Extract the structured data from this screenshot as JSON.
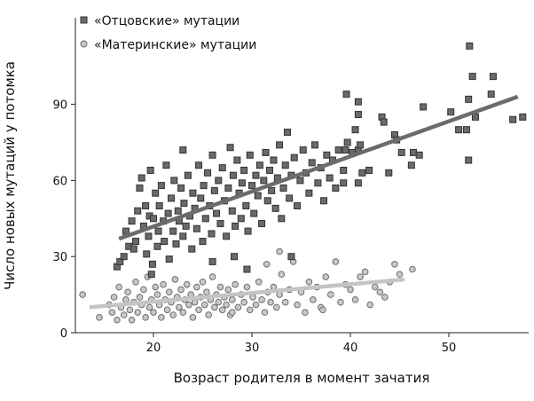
{
  "chart_data": {
    "type": "scatter",
    "title": "",
    "xlabel": "Возраст родителя в момент зачатия",
    "ylabel": "Число новых мутаций у потомка",
    "xlim": [
      12,
      58.5
    ],
    "ylim": [
      0,
      124
    ],
    "xticks": [
      "20",
      "30",
      "40",
      "50"
    ],
    "xtick_values": [
      20,
      30,
      40,
      50
    ],
    "yticks": [
      "0",
      "30",
      "60",
      "90"
    ],
    "ytick_values": [
      0,
      30,
      60,
      90
    ],
    "grid": false,
    "legend_position": "top-left",
    "series": [
      {
        "name": "«Отцовские» мутации",
        "marker": "square",
        "color": "#6a6a6a",
        "trend": {
          "x": [
            16.5,
            57
          ],
          "y": [
            37,
            93
          ],
          "color": "#6b6b6b"
        },
        "points": [
          [
            16.3,
            26
          ],
          [
            16.6,
            28
          ],
          [
            17,
            30
          ],
          [
            17.2,
            40
          ],
          [
            17.5,
            34
          ],
          [
            17.8,
            44
          ],
          [
            18,
            33
          ],
          [
            18.2,
            36
          ],
          [
            18.4,
            48
          ],
          [
            18.6,
            57
          ],
          [
            18.8,
            61
          ],
          [
            19,
            42
          ],
          [
            19.2,
            50
          ],
          [
            19.3,
            31
          ],
          [
            19.5,
            38
          ],
          [
            19.6,
            46
          ],
          [
            19.7,
            64
          ],
          [
            19.8,
            23
          ],
          [
            19.9,
            27
          ],
          [
            20,
            45
          ],
          [
            20.2,
            55
          ],
          [
            20.4,
            34
          ],
          [
            20.5,
            40
          ],
          [
            20.6,
            50
          ],
          [
            20.8,
            58
          ],
          [
            21,
            44
          ],
          [
            21.1,
            36
          ],
          [
            21.3,
            66
          ],
          [
            21.5,
            47
          ],
          [
            21.6,
            29
          ],
          [
            21.8,
            53
          ],
          [
            22,
            40
          ],
          [
            22.1,
            60
          ],
          [
            22.3,
            35
          ],
          [
            22.5,
            48
          ],
          [
            22.6,
            44
          ],
          [
            22.8,
            57
          ],
          [
            23,
            38
          ],
          [
            23.1,
            51
          ],
          [
            23.3,
            42
          ],
          [
            23.5,
            62
          ],
          [
            23.7,
            46
          ],
          [
            23.9,
            33
          ],
          [
            24,
            55
          ],
          [
            24.2,
            49
          ],
          [
            24.4,
            41
          ],
          [
            24.6,
            66
          ],
          [
            24.8,
            53
          ],
          [
            25,
            36
          ],
          [
            25.1,
            58
          ],
          [
            25.3,
            45
          ],
          [
            25.5,
            63
          ],
          [
            25.7,
            50
          ],
          [
            25.9,
            39
          ],
          [
            26,
            70
          ],
          [
            26.2,
            56
          ],
          [
            26.4,
            47
          ],
          [
            26.6,
            60
          ],
          [
            26.8,
            43
          ],
          [
            27,
            65
          ],
          [
            27.2,
            52
          ],
          [
            27.4,
            38
          ],
          [
            27.6,
            57
          ],
          [
            27.8,
            73
          ],
          [
            28,
            48
          ],
          [
            28.1,
            62
          ],
          [
            28.3,
            42
          ],
          [
            28.5,
            68
          ],
          [
            28.7,
            55
          ],
          [
            28.9,
            45
          ],
          [
            29,
            59
          ],
          [
            29.2,
            64
          ],
          [
            29.4,
            50
          ],
          [
            29.6,
            40
          ],
          [
            29.8,
            70
          ],
          [
            30,
            58
          ],
          [
            30.2,
            47
          ],
          [
            30.4,
            62
          ],
          [
            30.6,
            54
          ],
          [
            30.8,
            66
          ],
          [
            31,
            43
          ],
          [
            31.2,
            60
          ],
          [
            31.4,
            71
          ],
          [
            31.6,
            52
          ],
          [
            31.8,
            64
          ],
          [
            32,
            56
          ],
          [
            32.2,
            68
          ],
          [
            32.4,
            49
          ],
          [
            32.6,
            61
          ],
          [
            32.8,
            74
          ],
          [
            33,
            45
          ],
          [
            33.2,
            57
          ],
          [
            33.4,
            66
          ],
          [
            33.6,
            79
          ],
          [
            33.8,
            53
          ],
          [
            34,
            62
          ],
          [
            34.3,
            69
          ],
          [
            34.6,
            50
          ],
          [
            34.9,
            60
          ],
          [
            35.2,
            72
          ],
          [
            35.5,
            63
          ],
          [
            35.8,
            55
          ],
          [
            36.1,
            67
          ],
          [
            36.4,
            74
          ],
          [
            36.7,
            59
          ],
          [
            37,
            65
          ],
          [
            37.3,
            52
          ],
          [
            37.6,
            70
          ],
          [
            37.9,
            61
          ],
          [
            38.2,
            68
          ],
          [
            38.5,
            57
          ],
          [
            38.8,
            72
          ],
          [
            26,
            28
          ],
          [
            23,
            72
          ],
          [
            28.2,
            30
          ],
          [
            29.5,
            25
          ],
          [
            34,
            30
          ],
          [
            39.3,
            64
          ],
          [
            39.3,
            59
          ],
          [
            39.5,
            72
          ],
          [
            39.6,
            94
          ],
          [
            39.7,
            75
          ],
          [
            40.2,
            71
          ],
          [
            40.5,
            80
          ],
          [
            40.8,
            91
          ],
          [
            40.8,
            86
          ],
          [
            40.8,
            72
          ],
          [
            40.8,
            59
          ],
          [
            41,
            74
          ],
          [
            41.2,
            63
          ],
          [
            41.9,
            64
          ],
          [
            43.2,
            85
          ],
          [
            43.4,
            83
          ],
          [
            43.9,
            63
          ],
          [
            44.5,
            78
          ],
          [
            44.7,
            76
          ],
          [
            45.2,
            71
          ],
          [
            46.2,
            66
          ],
          [
            46.4,
            71
          ],
          [
            47,
            70
          ],
          [
            47.4,
            89
          ],
          [
            50.2,
            87
          ],
          [
            51,
            80
          ],
          [
            51.8,
            80
          ],
          [
            52,
            68
          ],
          [
            52,
            92
          ],
          [
            52.1,
            113
          ],
          [
            52.4,
            101
          ],
          [
            52.7,
            85
          ],
          [
            54.3,
            94
          ],
          [
            54.5,
            101
          ],
          [
            56.5,
            84
          ],
          [
            57.5,
            85
          ]
        ]
      },
      {
        "name": "«Материнские» мутации",
        "marker": "circle",
        "color": "#c8c8c8",
        "trend": {
          "x": [
            13.5,
            45.5
          ],
          "y": [
            10,
            21
          ],
          "color": "#c4c4c4"
        },
        "points": [
          [
            12.8,
            15
          ],
          [
            14.5,
            6
          ],
          [
            15.5,
            11
          ],
          [
            15.8,
            8
          ],
          [
            16,
            14
          ],
          [
            16.3,
            5
          ],
          [
            16.5,
            18
          ],
          [
            16.7,
            10
          ],
          [
            17,
            7
          ],
          [
            17.2,
            13
          ],
          [
            17.4,
            16
          ],
          [
            17.6,
            9
          ],
          [
            17.8,
            5
          ],
          [
            18,
            12
          ],
          [
            18.2,
            20
          ],
          [
            18.4,
            8
          ],
          [
            18.6,
            14
          ],
          [
            18.8,
            11
          ],
          [
            19,
            17
          ],
          [
            19.2,
            6
          ],
          [
            19.4,
            22
          ],
          [
            19.6,
            10
          ],
          [
            19.8,
            13
          ],
          [
            20,
            8
          ],
          [
            20.2,
            18
          ],
          [
            20.4,
            15
          ],
          [
            20.6,
            11
          ],
          [
            20.8,
            6
          ],
          [
            21,
            19
          ],
          [
            21.2,
            13
          ],
          [
            21.4,
            9
          ],
          [
            21.6,
            16
          ],
          [
            21.8,
            12
          ],
          [
            22,
            7
          ],
          [
            22.2,
            21
          ],
          [
            22.4,
            14
          ],
          [
            22.6,
            10
          ],
          [
            22.8,
            17
          ],
          [
            23,
            8
          ],
          [
            23.2,
            13
          ],
          [
            23.4,
            19
          ],
          [
            23.6,
            11
          ],
          [
            23.8,
            15
          ],
          [
            24,
            6
          ],
          [
            24.2,
            12
          ],
          [
            24.4,
            18
          ],
          [
            24.6,
            9
          ],
          [
            24.8,
            14
          ],
          [
            25,
            20
          ],
          [
            25.2,
            11
          ],
          [
            25.4,
            16
          ],
          [
            25.6,
            7
          ],
          [
            25.8,
            13
          ],
          [
            26,
            22
          ],
          [
            26.2,
            10
          ],
          [
            26.4,
            15
          ],
          [
            26.6,
            12
          ],
          [
            26.8,
            18
          ],
          [
            27,
            9
          ],
          [
            27.2,
            14
          ],
          [
            27.4,
            11
          ],
          [
            27.6,
            17
          ],
          [
            27.8,
            7
          ],
          [
            28,
            13
          ],
          [
            28.3,
            19
          ],
          [
            28.6,
            10
          ],
          [
            28.9,
            15
          ],
          [
            29.2,
            12
          ],
          [
            29.5,
            18
          ],
          [
            29.8,
            9
          ],
          [
            30.1,
            14
          ],
          [
            30.4,
            11
          ],
          [
            30.7,
            20
          ],
          [
            31,
            13
          ],
          [
            31.3,
            8
          ],
          [
            31.6,
            16
          ],
          [
            31.9,
            12
          ],
          [
            32.2,
            18
          ],
          [
            32.5,
            10
          ],
          [
            32.8,
            15
          ],
          [
            33,
            23
          ],
          [
            33.4,
            12
          ],
          [
            33.8,
            17
          ],
          [
            34.2,
            28
          ],
          [
            34.6,
            11
          ],
          [
            35,
            16
          ],
          [
            35.4,
            8
          ],
          [
            35.8,
            20
          ],
          [
            36.2,
            13
          ],
          [
            36.6,
            18
          ],
          [
            37,
            10
          ],
          [
            37.5,
            22
          ],
          [
            38,
            15
          ],
          [
            38.5,
            28
          ],
          [
            39,
            12
          ],
          [
            39.5,
            19
          ],
          [
            40,
            17
          ],
          [
            40.5,
            13
          ],
          [
            41,
            22
          ],
          [
            41.5,
            24
          ],
          [
            42,
            11
          ],
          [
            42.5,
            18
          ],
          [
            43,
            16
          ],
          [
            43.5,
            14
          ],
          [
            44,
            20
          ],
          [
            44.5,
            27
          ],
          [
            45,
            23
          ],
          [
            46.3,
            25
          ],
          [
            32.8,
            32
          ],
          [
            31.5,
            27
          ],
          [
            37.2,
            9
          ],
          [
            28,
            8
          ]
        ]
      }
    ]
  }
}
